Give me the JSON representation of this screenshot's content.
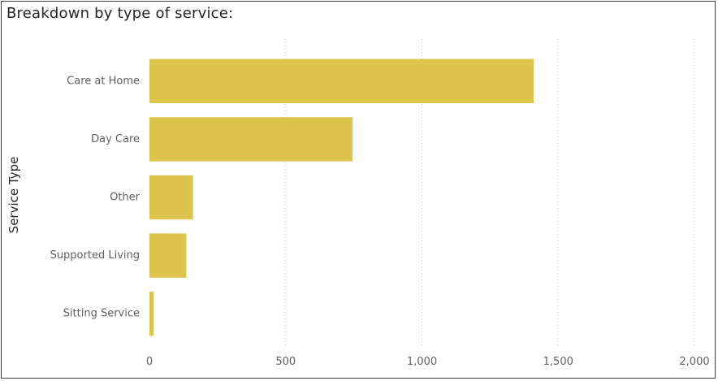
{
  "chart_data": {
    "type": "bar",
    "orientation": "horizontal",
    "title": "Breakdown by type of service:",
    "ylabel": "Service Type",
    "xlabel": "",
    "categories": [
      "Care at Home",
      "Day Care",
      "Other",
      "Supported Living",
      "Sitting Service"
    ],
    "values": [
      1410,
      745,
      160,
      135,
      15
    ],
    "xlim": [
      0,
      2000
    ],
    "xticks": [
      0,
      500,
      1000,
      1500,
      2000
    ],
    "xtick_labels": [
      "0",
      "500",
      "1,000",
      "1,500",
      "2,000"
    ],
    "grid": "vertical dotted",
    "bar_color": "#DDC44D"
  }
}
